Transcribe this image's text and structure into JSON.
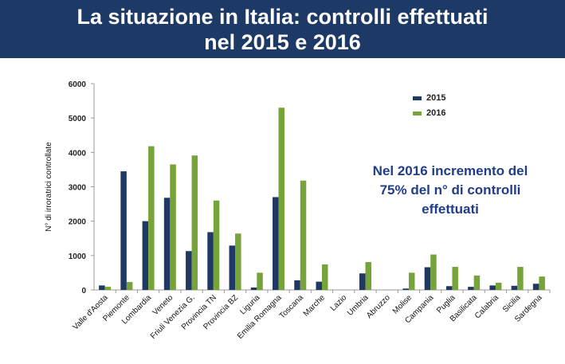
{
  "header": {
    "title_line1": "La situazione in Italia: controlli effettuati",
    "title_line2": "nel 2015 e 2016"
  },
  "annotation": {
    "line1": "Nel 2016 incremento del",
    "line2": "75% del n° di controlli",
    "line3": "effettuati"
  },
  "colors": {
    "header_bg": "#1d3a66",
    "series_2015": "#1f3864",
    "series_2016": "#77a33b",
    "annotation": "#1f3d8a"
  },
  "chart_data": {
    "type": "bar",
    "ylabel": "N° di irroratrici controllate",
    "xlabel": "",
    "ylim": [
      0,
      6000
    ],
    "yticks": [
      0,
      1000,
      2000,
      3000,
      4000,
      5000,
      6000
    ],
    "grid": false,
    "legend_position": "top-right",
    "categories": [
      "Valle d'Aosta",
      "Piemonte",
      "Lombardia",
      "Veneto",
      "Friuli Venezia G.",
      "Provincia TN",
      "Provincia BZ",
      "Liguria",
      "Emilia Romagna",
      "Toscana",
      "Marche",
      "Lazio",
      "Umbria",
      "Abruzzo",
      "Molise",
      "Campania",
      "Puglia",
      "Basilicata",
      "Calabria",
      "Sicilia",
      "Sardegna"
    ],
    "series": [
      {
        "name": "2015",
        "color": "#1f3864",
        "values": [
          130,
          3450,
          2000,
          2680,
          1130,
          1680,
          1290,
          70,
          2700,
          280,
          240,
          0,
          480,
          0,
          40,
          660,
          110,
          90,
          130,
          120,
          180
        ]
      },
      {
        "name": "2016",
        "color": "#77a33b",
        "values": [
          90,
          230,
          4180,
          3650,
          3910,
          2600,
          1640,
          500,
          5300,
          3180,
          740,
          0,
          810,
          0,
          500,
          1030,
          670,
          420,
          210,
          670,
          390
        ]
      }
    ]
  }
}
